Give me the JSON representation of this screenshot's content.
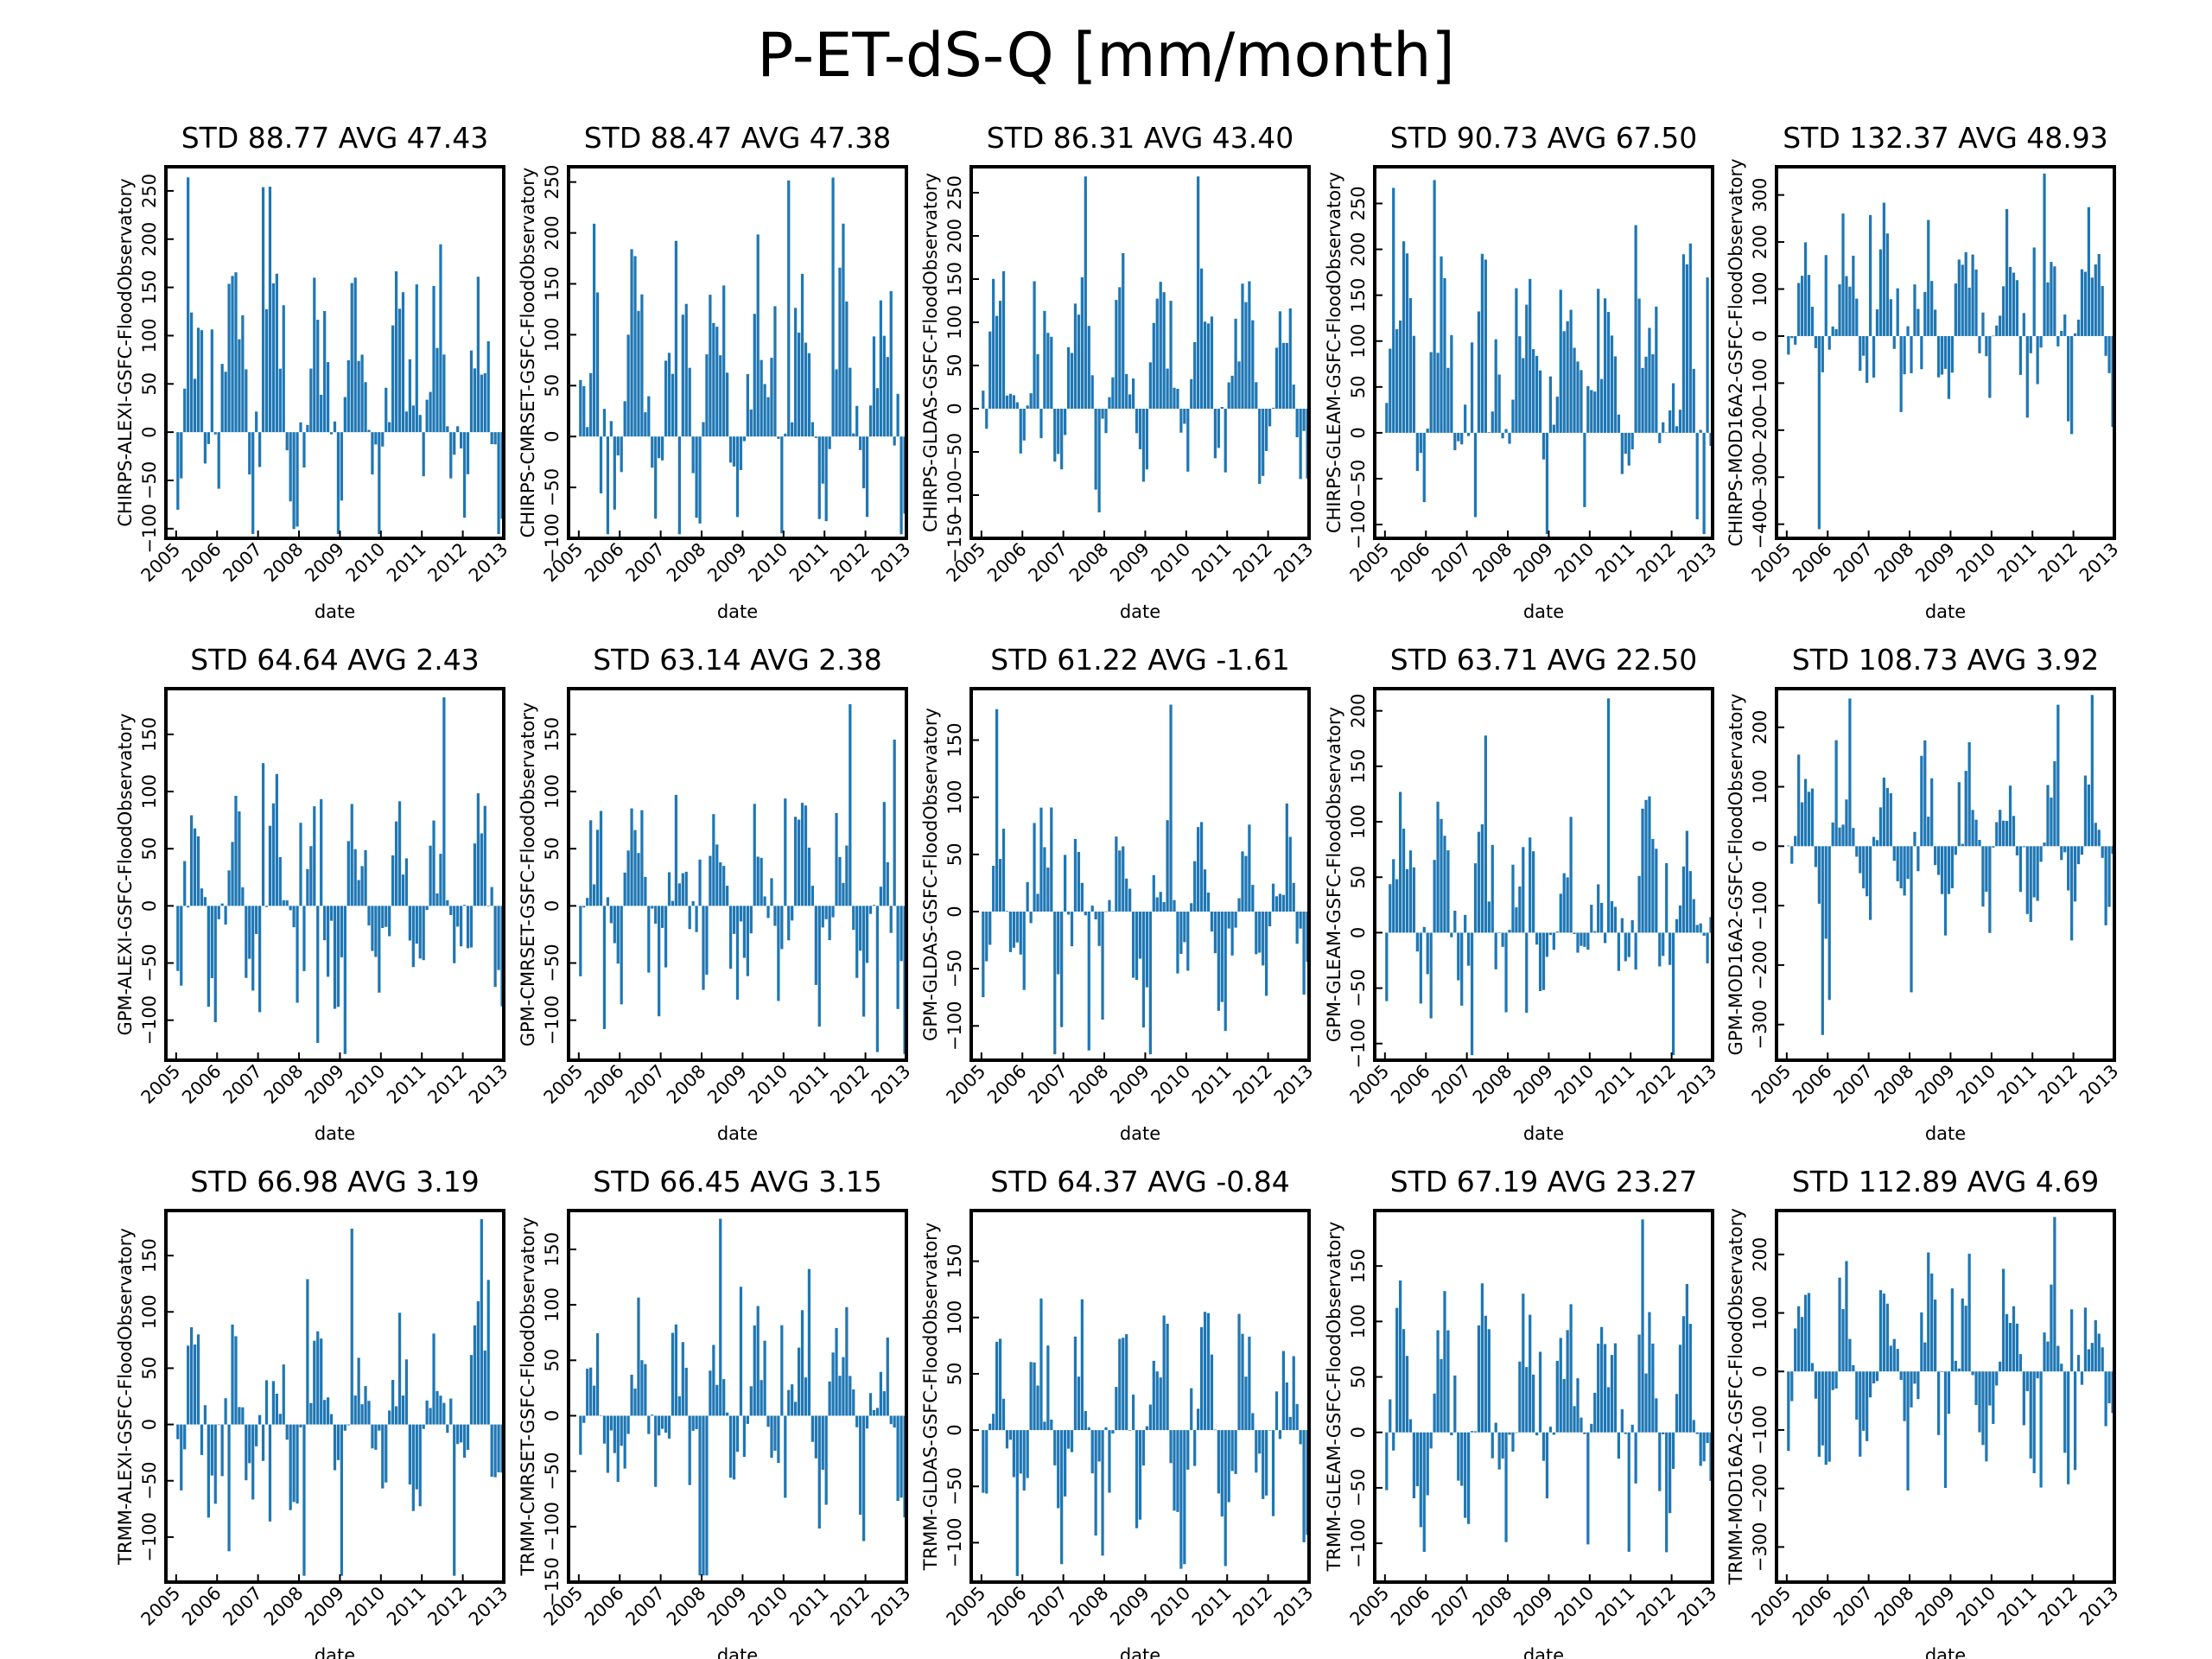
{
  "figure": {
    "suptitle": "P-ET-dS-Q [mm/month]",
    "bar_color": "#1f77b4",
    "x_tick_labels": [
      "2005",
      "2006",
      "2007",
      "2008",
      "2009",
      "2010",
      "2011",
      "2012",
      "2013"
    ]
  },
  "chart_data": [
    {
      "type": "bar",
      "title": "STD 88.77 AVG 47.43",
      "xlabel": "date",
      "ylabel": "CHIRPS-ALEXI-GSFC-FloodObservatory",
      "ylim": [
        -110,
        275
      ],
      "yticks": [
        -100,
        -50,
        0,
        50,
        100,
        150,
        200,
        250
      ],
      "std": 88.77,
      "avg": 47.43,
      "x_range": [
        "2004-10",
        "2013-01"
      ],
      "series_start": "2005-01",
      "series_end": "2012-12"
    },
    {
      "type": "bar",
      "title": "STD 88.47 AVG 47.38",
      "xlabel": "date",
      "ylabel": "CHIRPS-CMRSET-GSFC-FloodObservatory",
      "ylim": [
        -100,
        265
      ],
      "yticks": [
        -100,
        -50,
        0,
        50,
        100,
        150,
        200,
        250
      ],
      "std": 88.47,
      "avg": 47.38,
      "x_range": [
        "2004-10",
        "2013-01"
      ],
      "series_start": "2005-01",
      "series_end": "2012-12"
    },
    {
      "type": "bar",
      "title": "STD 86.31 AVG 43.40",
      "xlabel": "date",
      "ylabel": "CHIRPS-GLDAS-GSFC-FloodObservatory",
      "ylim": [
        -150,
        280
      ],
      "yticks": [
        -150,
        -100,
        -50,
        0,
        50,
        100,
        150,
        200,
        250
      ],
      "std": 86.31,
      "avg": 43.4,
      "x_range": [
        "2004-10",
        "2013-01"
      ],
      "series_start": "2005-01",
      "series_end": "2012-12"
    },
    {
      "type": "bar",
      "title": "STD 90.73 AVG 67.50",
      "xlabel": "date",
      "ylabel": "CHIRPS-GLEAM-GSFC-FloodObservatory",
      "ylim": [
        -115,
        290
      ],
      "yticks": [
        -100,
        -50,
        0,
        50,
        100,
        150,
        200,
        250
      ],
      "std": 90.73,
      "avg": 67.5,
      "x_range": [
        "2004-10",
        "2013-01"
      ],
      "series_start": "2005-01",
      "series_end": "2012-12"
    },
    {
      "type": "bar",
      "title": "STD 132.37 AVG 48.93",
      "xlabel": "date",
      "ylabel": "CHIRPS-MOD16A2-GSFC-FloodObservatory",
      "ylim": [
        -430,
        360
      ],
      "yticks": [
        -400,
        -300,
        -200,
        -100,
        0,
        100,
        200,
        300
      ],
      "std": 132.37,
      "avg": 48.93,
      "x_range": [
        "2004-10",
        "2013-01"
      ],
      "series_start": "2005-01",
      "series_end": "2012-12"
    },
    {
      "type": "bar",
      "title": "STD 64.64 AVG 2.43",
      "xlabel": "date",
      "ylabel": "GPM-ALEXI-GSFC-FloodObservatory",
      "ylim": [
        -135,
        190
      ],
      "yticks": [
        -100,
        -50,
        0,
        50,
        100,
        150
      ],
      "std": 64.64,
      "avg": 2.43,
      "x_range": [
        "2004-10",
        "2013-01"
      ],
      "series_start": "2005-01",
      "series_end": "2012-12"
    },
    {
      "type": "bar",
      "title": "STD 63.14 AVG 2.38",
      "xlabel": "date",
      "ylabel": "GPM-CMRSET-GSFC-FloodObservatory",
      "ylim": [
        -135,
        190
      ],
      "yticks": [
        -100,
        -50,
        0,
        50,
        100,
        150
      ],
      "std": 63.14,
      "avg": 2.38,
      "x_range": [
        "2004-10",
        "2013-01"
      ],
      "series_start": "2005-01",
      "series_end": "2012-12"
    },
    {
      "type": "bar",
      "title": "STD 61.22 AVG -1.61",
      "xlabel": "date",
      "ylabel": "GPM-GLDAS-GSFC-FloodObservatory",
      "ylim": [
        -130,
        195
      ],
      "yticks": [
        -100,
        -50,
        0,
        50,
        100,
        150
      ],
      "std": 61.22,
      "avg": -1.61,
      "x_range": [
        "2004-10",
        "2013-01"
      ],
      "series_start": "2005-01",
      "series_end": "2012-12"
    },
    {
      "type": "bar",
      "title": "STD 63.71 AVG 22.50",
      "xlabel": "date",
      "ylabel": "GPM-GLEAM-GSFC-FloodObservatory",
      "ylim": [
        -115,
        220
      ],
      "yticks": [
        -100,
        -50,
        0,
        50,
        100,
        150,
        200
      ],
      "std": 63.71,
      "avg": 22.5,
      "x_range": [
        "2004-10",
        "2013-01"
      ],
      "series_start": "2005-01",
      "series_end": "2012-12"
    },
    {
      "type": "bar",
      "title": "STD 108.73 AVG 3.92",
      "xlabel": "date",
      "ylabel": "GPM-MOD16A2-GSFC-FloodObservatory",
      "ylim": [
        -360,
        265
      ],
      "yticks": [
        -300,
        -200,
        -100,
        0,
        100,
        200
      ],
      "std": 108.73,
      "avg": 3.92,
      "x_range": [
        "2004-10",
        "2013-01"
      ],
      "series_start": "2005-01",
      "series_end": "2012-12"
    },
    {
      "type": "bar",
      "title": "STD 66.98 AVG 3.19",
      "xlabel": "date",
      "ylabel": "TRMM-ALEXI-GSFC-FloodObservatory",
      "ylim": [
        -140,
        190
      ],
      "yticks": [
        -100,
        -50,
        0,
        50,
        100,
        150
      ],
      "std": 66.98,
      "avg": 3.19,
      "x_range": [
        "2004-10",
        "2013-01"
      ],
      "series_start": "2005-01",
      "series_end": "2012-12"
    },
    {
      "type": "bar",
      "title": "STD 66.45 AVG 3.15",
      "xlabel": "date",
      "ylabel": "TRMM-CMRSET-GSFC-FloodObservatory",
      "ylim": [
        -150,
        185
      ],
      "yticks": [
        -150,
        -100,
        -50,
        0,
        50,
        100,
        150
      ],
      "std": 66.45,
      "avg": 3.15,
      "x_range": [
        "2004-10",
        "2013-01"
      ],
      "series_start": "2005-01",
      "series_end": "2012-12"
    },
    {
      "type": "bar",
      "title": "STD 64.37 AVG -0.84",
      "xlabel": "date",
      "ylabel": "TRMM-GLDAS-GSFC-FloodObservatory",
      "ylim": [
        -135,
        195
      ],
      "yticks": [
        -100,
        -50,
        0,
        50,
        100,
        150
      ],
      "std": 64.37,
      "avg": -0.84,
      "x_range": [
        "2004-10",
        "2013-01"
      ],
      "series_start": "2005-01",
      "series_end": "2012-12"
    },
    {
      "type": "bar",
      "title": "STD 67.19 AVG 23.27",
      "xlabel": "date",
      "ylabel": "TRMM-GLEAM-GSFC-FloodObservatory",
      "ylim": [
        -135,
        200
      ],
      "yticks": [
        -100,
        -50,
        0,
        50,
        100,
        150
      ],
      "std": 67.19,
      "avg": 23.27,
      "x_range": [
        "2004-10",
        "2013-01"
      ],
      "series_start": "2005-01",
      "series_end": "2012-12"
    },
    {
      "type": "bar",
      "title": "STD 112.89 AVG 4.69",
      "xlabel": "date",
      "ylabel": "TRMM-MOD16A2-GSFC-FloodObservatory",
      "ylim": [
        -360,
        275
      ],
      "yticks": [
        -300,
        -200,
        -100,
        0,
        100,
        200
      ],
      "std": 112.89,
      "avg": 4.69,
      "x_range": [
        "2004-10",
        "2013-01"
      ],
      "series_start": "2005-01",
      "series_end": "2012-12"
    }
  ]
}
